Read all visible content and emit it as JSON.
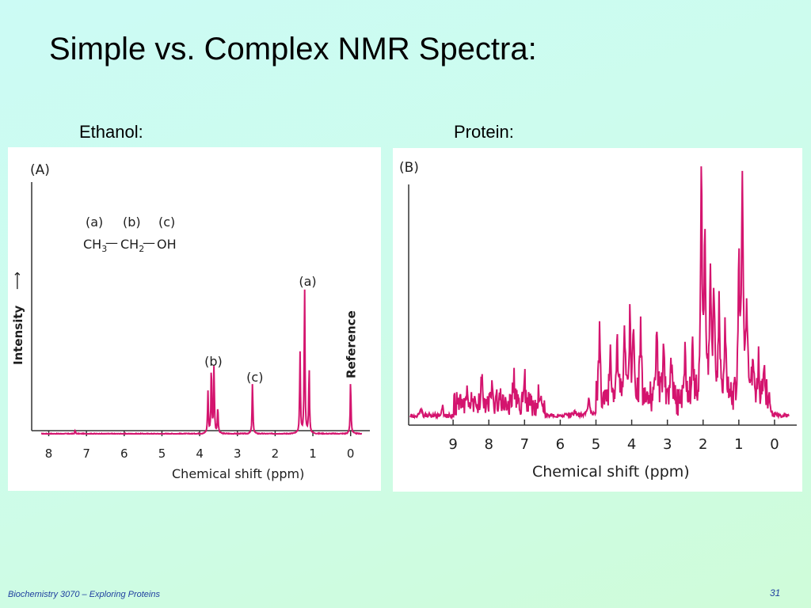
{
  "slide": {
    "title": "Simple vs. Complex NMR Spectra:",
    "footer": "Biochemistry 3070 – Exploring Proteins",
    "page_number": "31"
  },
  "colors": {
    "trace": "#d4146e",
    "axis": "#333333"
  },
  "chart_data": [
    {
      "type": "line",
      "caption": "Ethanol:",
      "panel_label": "(A)",
      "title": "",
      "xlabel": "Chemical shift (ppm)",
      "ylabel": "Intensity",
      "ylabel_arrow": "⟶",
      "xlim": [
        8.2,
        -0.3
      ],
      "x_ticks": [
        8,
        7,
        6,
        5,
        4,
        3,
        2,
        1,
        0
      ],
      "x_ticks_reversed": true,
      "structure": {
        "labels": [
          "(a)",
          "(b)",
          "(c)"
        ],
        "formula_parts": [
          "CH",
          "3",
          "CH",
          "2",
          "OH"
        ],
        "bond": "—"
      },
      "peak_labels": [
        {
          "text": "(a)",
          "x": 1.2
        },
        {
          "text": "(b)",
          "x": 3.7
        },
        {
          "text": "(c)",
          "x": 2.6
        }
      ],
      "reference_label": {
        "text": "Reference",
        "x": 0
      },
      "ylim": [
        0,
        1
      ],
      "peaks": [
        {
          "x": 7.3,
          "y": 0.02
        },
        {
          "x": 3.78,
          "y": 0.26
        },
        {
          "x": 3.69,
          "y": 0.43
        },
        {
          "x": 3.62,
          "y": 0.42
        },
        {
          "x": 3.52,
          "y": 0.17
        },
        {
          "x": 2.6,
          "y": 0.32
        },
        {
          "x": 1.34,
          "y": 0.51
        },
        {
          "x": 1.22,
          "y": 0.92
        },
        {
          "x": 1.1,
          "y": 0.42
        },
        {
          "x": 0.0,
          "y": 0.34
        }
      ]
    },
    {
      "type": "line",
      "caption": "Protein:",
      "panel_label": "(B)",
      "title": "",
      "xlabel": "Chemical shift (ppm)",
      "xlim": [
        10.2,
        -0.4
      ],
      "x_ticks": [
        9,
        8,
        7,
        6,
        5,
        4,
        3,
        2,
        1,
        0
      ],
      "x_ticks_reversed": true,
      "ylim": [
        0,
        1
      ],
      "peaks": [
        {
          "x": 9.9,
          "y": 0.04
        },
        {
          "x": 9.3,
          "y": 0.04
        },
        {
          "x": 8.6,
          "y": 0.09
        },
        {
          "x": 8.2,
          "y": 0.12
        },
        {
          "x": 7.9,
          "y": 0.11
        },
        {
          "x": 7.7,
          "y": 0.09
        },
        {
          "x": 7.3,
          "y": 0.13
        },
        {
          "x": 7.0,
          "y": 0.13
        },
        {
          "x": 6.6,
          "y": 0.06
        },
        {
          "x": 5.6,
          "y": 0.03
        },
        {
          "x": 5.2,
          "y": 0.08
        },
        {
          "x": 4.9,
          "y": 0.29
        },
        {
          "x": 4.6,
          "y": 0.2
        },
        {
          "x": 4.4,
          "y": 0.25
        },
        {
          "x": 4.2,
          "y": 0.31
        },
        {
          "x": 4.05,
          "y": 0.34
        },
        {
          "x": 3.95,
          "y": 0.32
        },
        {
          "x": 3.75,
          "y": 0.3
        },
        {
          "x": 3.3,
          "y": 0.34
        },
        {
          "x": 3.1,
          "y": 0.28
        },
        {
          "x": 2.9,
          "y": 0.22
        },
        {
          "x": 2.5,
          "y": 0.25
        },
        {
          "x": 2.3,
          "y": 0.24
        },
        {
          "x": 2.05,
          "y": 0.96
        },
        {
          "x": 1.95,
          "y": 0.74
        },
        {
          "x": 1.8,
          "y": 0.48
        },
        {
          "x": 1.7,
          "y": 0.5
        },
        {
          "x": 1.55,
          "y": 0.38
        },
        {
          "x": 1.38,
          "y": 0.3
        },
        {
          "x": 1.0,
          "y": 0.6
        },
        {
          "x": 0.9,
          "y": 0.96
        },
        {
          "x": 0.78,
          "y": 0.4
        },
        {
          "x": 0.6,
          "y": 0.2
        },
        {
          "x": 0.45,
          "y": 0.15
        },
        {
          "x": 0.3,
          "y": 0.12
        },
        {
          "x": 0.15,
          "y": 0.1
        }
      ]
    }
  ]
}
